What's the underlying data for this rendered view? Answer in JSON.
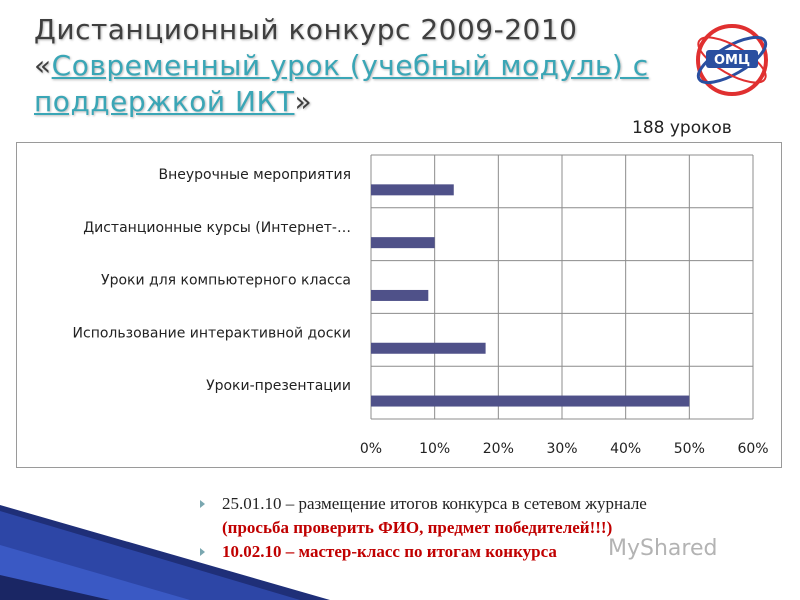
{
  "title": {
    "line1": "Дистанционный конкурс 2009-2010",
    "quote_open": "«",
    "link_text": "Современный урок (учебный модуль) с поддержкой ИКТ",
    "quote_close": "»"
  },
  "logo": {
    "icon": "omc-logo-icon",
    "text": "ОМЦ"
  },
  "count_label": "188 уроков",
  "chart_data": {
    "type": "bar",
    "orientation": "horizontal",
    "categories": [
      "Внеурочные мероприятия",
      "Дистанционные курсы (Интернет-…",
      "Уроки для компьютерного класса",
      "Использование интерактивной доски",
      "Уроки-презентации"
    ],
    "values": [
      0.13,
      0.1,
      0.09,
      0.18,
      0.5
    ],
    "xlim": [
      0,
      0.6
    ],
    "xticks": [
      "0%",
      "10%",
      "20%",
      "30%",
      "40%",
      "50%",
      "60%"
    ],
    "grid": true,
    "legend": "none",
    "bar_color": "#4f5189",
    "title": "",
    "xlabel": "",
    "ylabel": ""
  },
  "bullets": [
    {
      "text": "25.01.10 – размещение итогов конкурса в сетевом журнале",
      "style": "normal"
    },
    {
      "text": "(просьба проверить ФИО, предмет победителей!!!)",
      "style": "red",
      "no_marker": true
    },
    {
      "text": "10.02.10 – мастер-класс по итогам конкурса",
      "style": "red"
    }
  ],
  "watermark": "MyShared"
}
